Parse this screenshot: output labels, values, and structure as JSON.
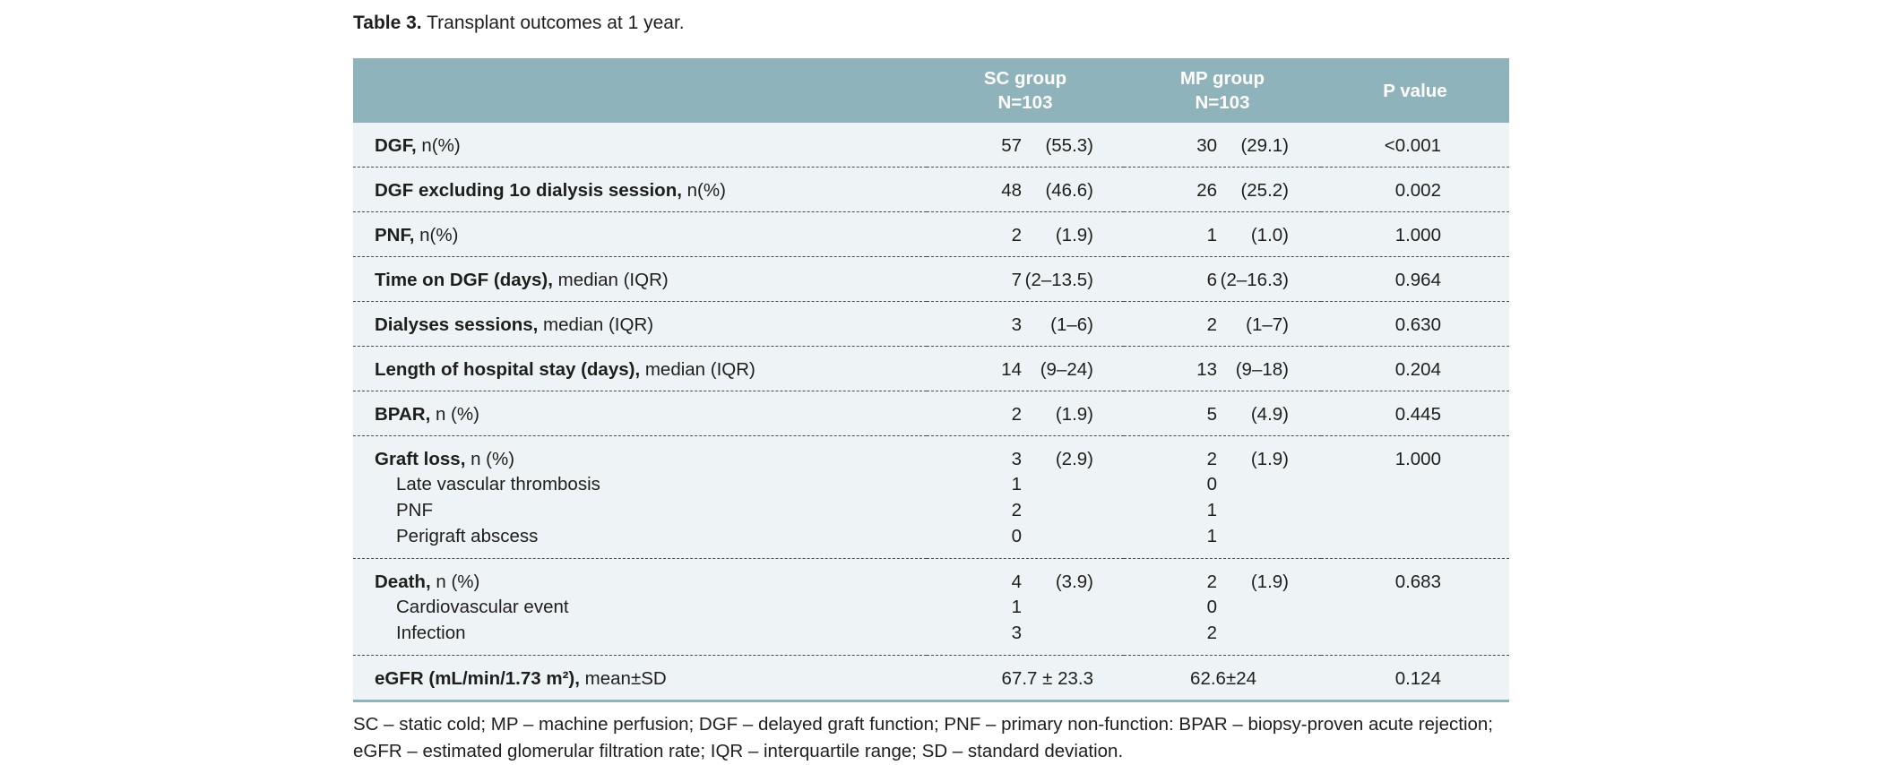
{
  "caption": {
    "label": "Table 3.",
    "text": " Transplant outcomes at 1 year."
  },
  "header": {
    "sc_line1": "SC group",
    "sc_line2": "N=103",
    "mp_line1": "MP group",
    "mp_line2": "N=103",
    "p": "P value"
  },
  "rows": [
    {
      "bold": "DGF,",
      "rest": " n(%)",
      "sc_a": "57",
      "sc_b": "(55.3)",
      "mp_a": "30",
      "mp_b": "(29.1)",
      "p": "<0.001"
    },
    {
      "bold": "DGF excluding 1o dialysis session,",
      "rest": " n(%)",
      "sc_a": "48",
      "sc_b": "(46.6)",
      "mp_a": "26",
      "mp_b": "(25.2)",
      "p": "0.002"
    },
    {
      "bold": "PNF,",
      "rest": " n(%)",
      "sc_a": "2",
      "sc_b": "(1.9)",
      "mp_a": "1",
      "mp_b": "(1.0)",
      "p": "1.000"
    },
    {
      "bold": "Time on DGF (days),",
      "rest": " median (IQR)",
      "sc_a": "7",
      "sc_b": "(2–13.5)",
      "mp_a": "6",
      "mp_b": "(2–16.3)",
      "p": "0.964"
    },
    {
      "bold": "Dialyses sessions,",
      "rest": " median (IQR)",
      "sc_a": "3",
      "sc_b": "(1–6)",
      "mp_a": "2",
      "mp_b": "(1–7)",
      "p": "0.630"
    },
    {
      "bold": "Length of hospital stay (days),",
      "rest": " median (IQR)",
      "sc_a": "14",
      "sc_b": "(9–24)",
      "mp_a": "13",
      "mp_b": "(9–18)",
      "p": "0.204"
    },
    {
      "bold": "BPAR,",
      "rest": " n (%)",
      "sc_a": "2",
      "sc_b": "(1.9)",
      "mp_a": "5",
      "mp_b": "(4.9)",
      "p": "0.445"
    }
  ],
  "graft": {
    "bold": "Graft loss,",
    "rest": " n (%)",
    "sc_a": "3",
    "sc_b": "(2.9)",
    "mp_a": "2",
    "mp_b": "(1.9)",
    "p": "1.000",
    "subs": [
      {
        "label": "Late vascular thrombosis",
        "sc": "1",
        "mp": "0"
      },
      {
        "label": "PNF",
        "sc": "2",
        "mp": "1"
      },
      {
        "label": "Perigraft abscess",
        "sc": "0",
        "mp": "1"
      }
    ]
  },
  "death": {
    "bold": "Death,",
    "rest": " n (%)",
    "sc_a": "4",
    "sc_b": "(3.9)",
    "mp_a": "2",
    "mp_b": "(1.9)",
    "p": "0.683",
    "subs": [
      {
        "label": "Cardiovascular event",
        "sc": "1",
        "mp": "0"
      },
      {
        "label": "Infection",
        "sc": "3",
        "mp": "2"
      }
    ]
  },
  "egfr": {
    "bold": "eGFR (mL/min/1.73 m²),",
    "rest": " mean±SD",
    "sc": "67.7 ± 23.3",
    "mp": "62.6±24",
    "p": "0.124"
  },
  "footnote": "SC – static cold; MP – machine perfusion; DGF – delayed graft function; PNF – primary non-function: BPAR – biopsy-proven acute rejection; eGFR – estimated glomerular filtration rate; IQR – interquartile range; SD – standard deviation."
}
